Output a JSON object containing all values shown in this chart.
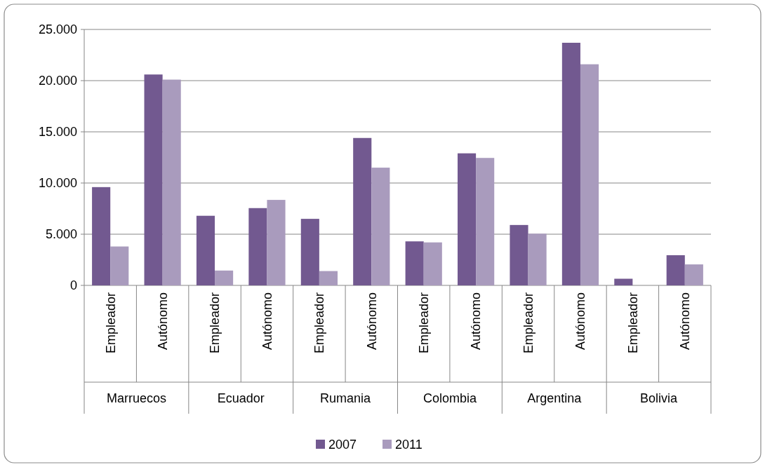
{
  "chart_data": {
    "type": "bar",
    "categories": [
      "Empleador",
      "Autónomo",
      "Empleador",
      "Autónomo",
      "Empleador",
      "Autónomo",
      "Empleador",
      "Autónomo",
      "Empleador",
      "Autónomo",
      "Empleador",
      "Autónomo"
    ],
    "annotations": [
      "Marruecos",
      "Ecuador",
      "Rumania",
      "Colombia",
      "Argentina",
      "Bolivia"
    ],
    "series": [
      {
        "name": "2007",
        "color": "#725990",
        "values": [
          9600,
          20600,
          6800,
          7550,
          6500,
          14400,
          4300,
          12900,
          5900,
          23700,
          650,
          2950
        ]
      },
      {
        "name": "2011",
        "color": "#a99bbd",
        "values": [
          3800,
          20100,
          1450,
          8350,
          1400,
          11500,
          4200,
          12450,
          5050,
          21600,
          null,
          2050
        ]
      }
    ],
    "ylim": [
      0,
      25000
    ],
    "yticks": [
      {
        "value": 0,
        "label": "0"
      },
      {
        "value": 5000,
        "label": "5.000"
      },
      {
        "value": 10000,
        "label": "10.000"
      },
      {
        "value": 15000,
        "label": "15.000"
      },
      {
        "value": 20000,
        "label": "20.000"
      },
      {
        "value": 25000,
        "label": "25.000"
      }
    ],
    "grid": "y",
    "legend": "bottom"
  }
}
